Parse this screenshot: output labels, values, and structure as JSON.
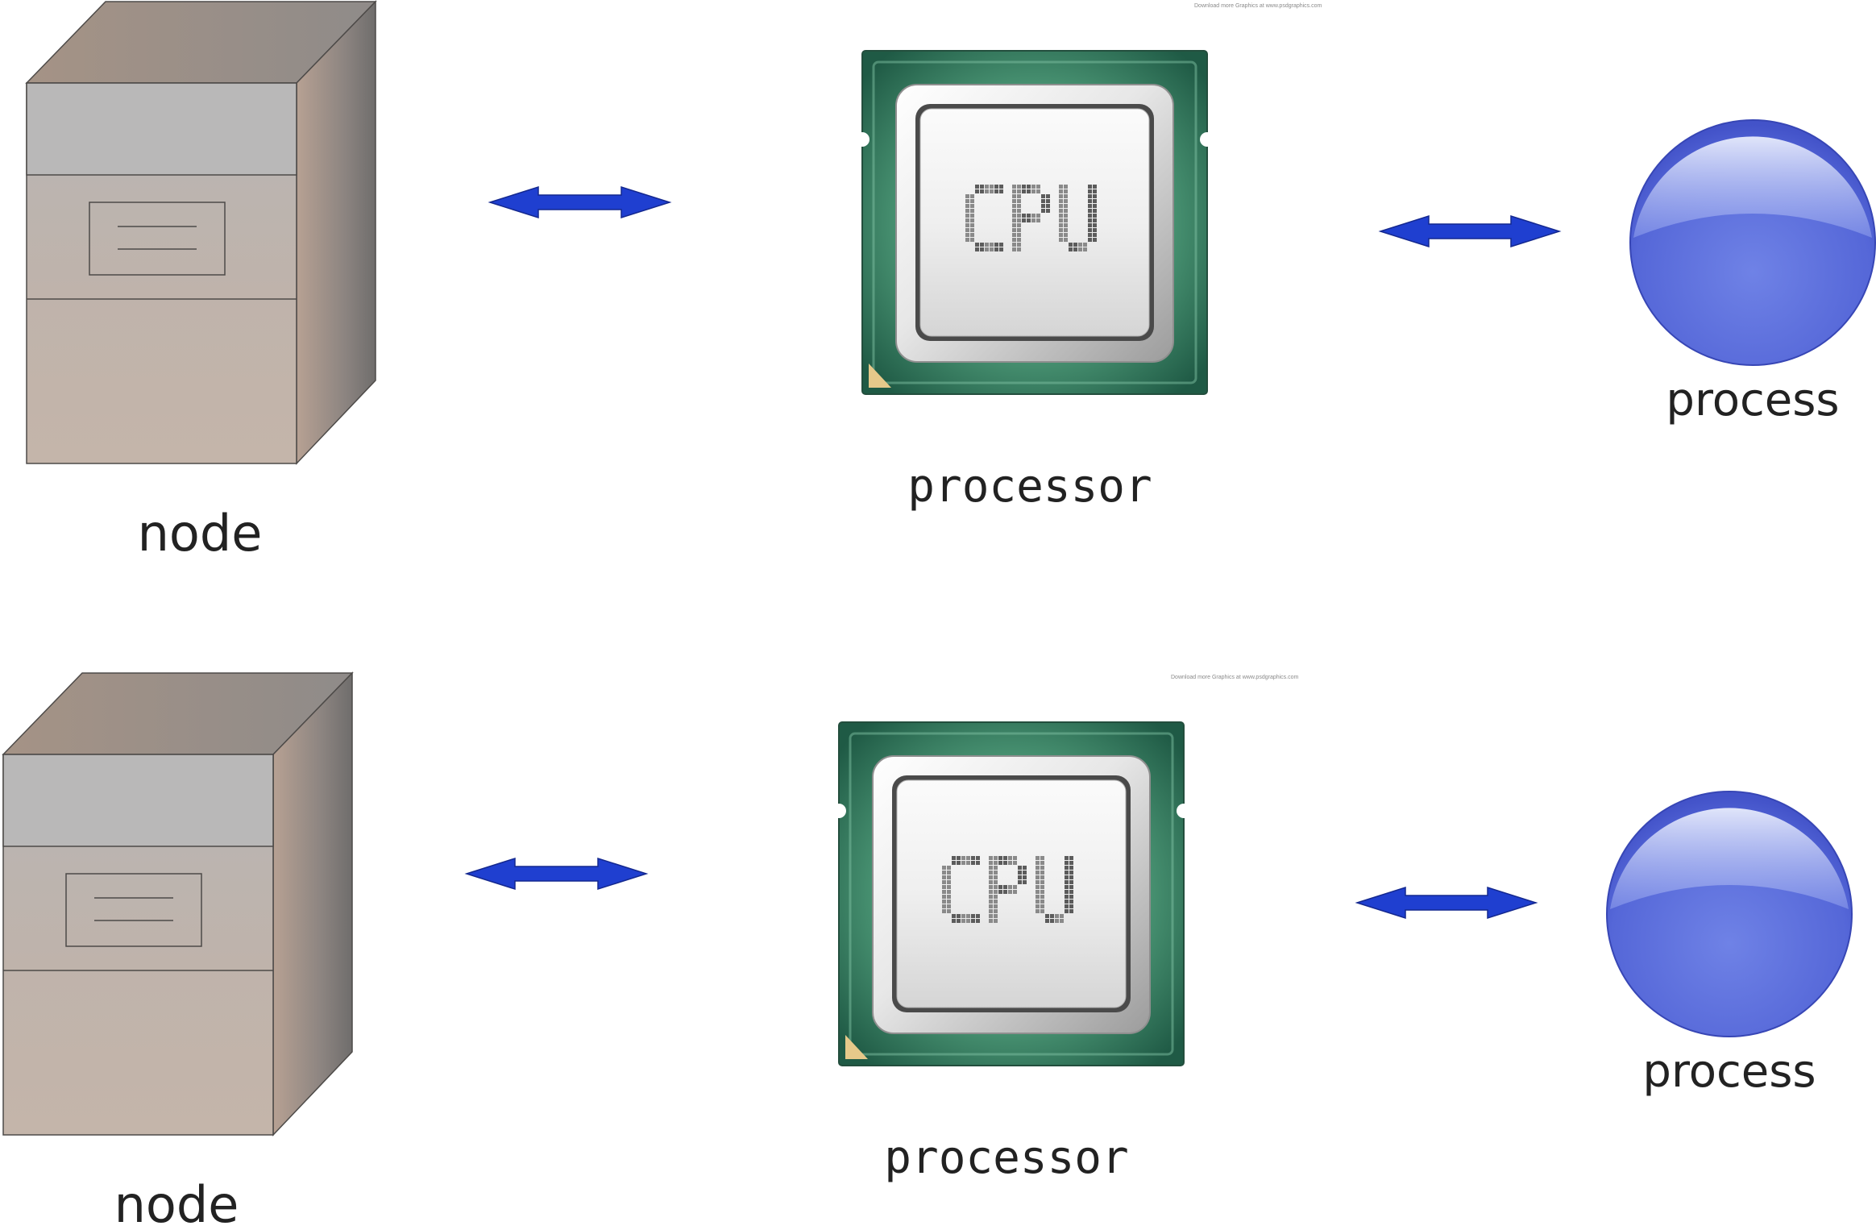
{
  "diagram": {
    "rows": [
      {
        "node_label": "node",
        "processor_label": "processor",
        "process_label": "process",
        "cpu_text": "CPU",
        "watermark": "Download more Graphics at www.psdgraphics.com"
      },
      {
        "node_label": "node",
        "processor_label": "processor",
        "process_label": "process",
        "cpu_text": "CPU",
        "watermark": "Download more Graphics at www.psdgraphics.com"
      }
    ]
  },
  "colors": {
    "arrow": "#1f3fd0",
    "sphere": "#5b6fdc",
    "chip_board": "#2f7a5e",
    "node_body": "#c0b2a8",
    "background": "#ffffff"
  },
  "icons": {
    "node": "server-box-icon",
    "processor": "cpu-chip-icon",
    "process": "sphere-icon",
    "connector": "double-arrow-icon"
  }
}
